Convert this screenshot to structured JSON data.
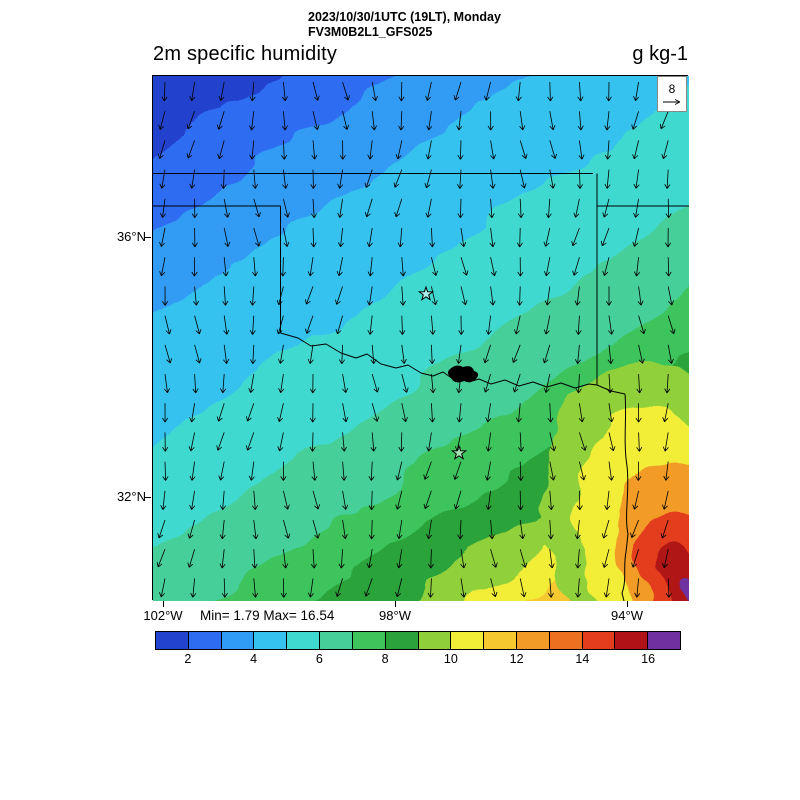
{
  "header": {
    "datetime_line": "2023/10/30/1UTC (19LT), Monday",
    "model_line": "FV3M0B2L1_GFS025"
  },
  "plot": {
    "title": "2m specific humidity",
    "units": "g kg-1",
    "min_max_label": "Min= 1.79 Max= 16.54",
    "reference_vector": {
      "value": "8"
    }
  },
  "axes": {
    "lat_ticks": [
      {
        "label": "36°N"
      },
      {
        "label": "32°N"
      }
    ],
    "lon_ticks": [
      {
        "label": "102°W"
      },
      {
        "label": "98°W"
      },
      {
        "label": "94°W"
      }
    ]
  },
  "colorbar": {
    "tick_labels": [
      "2",
      "4",
      "6",
      "8",
      "10",
      "12",
      "14",
      "16"
    ],
    "colors": [
      "#2143cd",
      "#2e6df2",
      "#319cf5",
      "#36c2ee",
      "#40d9cf",
      "#47cf9a",
      "#3ec45b",
      "#2ba33a",
      "#8fd03a",
      "#f2ee38",
      "#f6c830",
      "#f29b27",
      "#ec7020",
      "#e23d1c",
      "#b01217",
      "#7030a0"
    ]
  },
  "chart_data": {
    "type": "heatmap",
    "title": "2m specific humidity",
    "units": "g kg-1",
    "valid_time": "2023/10/30/1UTC (19LT), Monday",
    "run_id": "FV3M0B2L1_GFS025",
    "field_min": 1.79,
    "field_max": 16.54,
    "contour_levels": [
      2,
      3,
      4,
      5,
      6,
      7,
      8,
      9,
      10,
      11,
      12,
      13,
      14,
      15,
      16
    ],
    "level_colors": [
      "#2143cd",
      "#2e6df2",
      "#319cf5",
      "#36c2ee",
      "#40d9cf",
      "#47cf9a",
      "#3ec45b",
      "#2ba33a",
      "#8fd03a",
      "#f2ee38",
      "#f6c830",
      "#f29b27",
      "#ec7020",
      "#e23d1c",
      "#b01217",
      "#7030a0"
    ],
    "colorbar_tick_labels": [
      2,
      4,
      6,
      8,
      10,
      12,
      14,
      16
    ],
    "lat_tick_labels": [
      "36°N",
      "32°N"
    ],
    "lon_tick_labels": [
      "102°W",
      "98°W",
      "94°W"
    ],
    "wind_reference_magnitude": 8,
    "wind_direction": "northerly (arrows point southward over whole domain)",
    "spatial_pattern": "humidity increases diagonally from ~2 g/kg (dark blue) in the northwest to ~16.5 g/kg (red/purple) in the southeast corner; state borders of Oklahoma/Texas/Arkansas drawn; two open-star city markers",
    "markers": [
      "star-marker-northern (Oklahoma City area)",
      "star-marker-southern (Dallas area)"
    ]
  }
}
